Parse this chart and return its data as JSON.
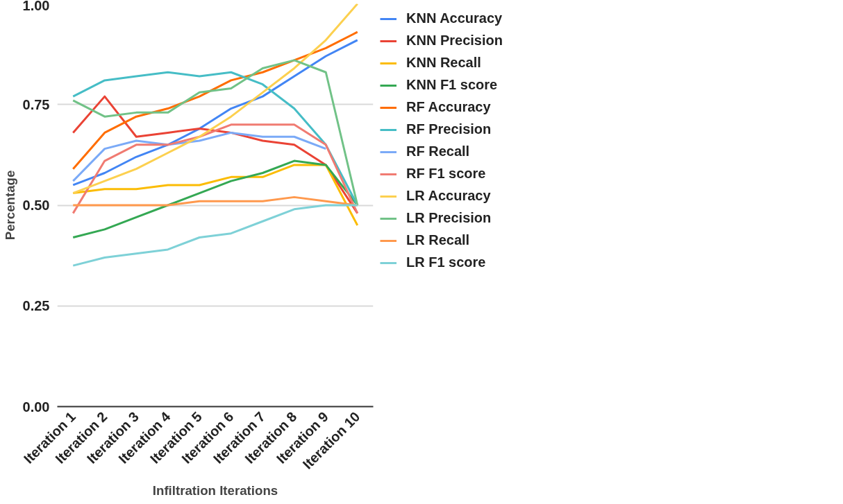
{
  "chart_data": {
    "type": "line",
    "xlabel": "Infiltration Iterations",
    "ylabel": "Percentage",
    "categories": [
      "Iteration 1",
      "Iteration 2",
      "Iteration 3",
      "Iteration 4",
      "Iteration 5",
      "Iteration 6",
      "Iteration 7",
      "Iteration 8",
      "Iteration 9",
      "Iteration 10"
    ],
    "ylim": [
      0,
      1
    ],
    "yticks": [
      {
        "value": 0,
        "label": "0.00"
      },
      {
        "value": 0.25,
        "label": "0.25"
      },
      {
        "value": 0.5,
        "label": "0.50"
      },
      {
        "value": 0.75,
        "label": "0.75"
      },
      {
        "value": 1,
        "label": "1.00"
      }
    ],
    "grid": "y",
    "legend": "right",
    "marker": "none",
    "line_style": "solid",
    "series": [
      {
        "name": "KNN Accuracy",
        "color": "#4285f4",
        "values": [
          0.55,
          0.58,
          0.62,
          0.65,
          0.69,
          0.74,
          0.77,
          0.82,
          0.87,
          0.91
        ]
      },
      {
        "name": "KNN Precision",
        "color": "#ea4335",
        "values": [
          0.68,
          0.77,
          0.67,
          0.68,
          0.69,
          0.68,
          0.66,
          0.65,
          0.6,
          0.48
        ]
      },
      {
        "name": "KNN Recall",
        "color": "#fbbc04",
        "values": [
          0.53,
          0.54,
          0.54,
          0.55,
          0.55,
          0.57,
          0.57,
          0.6,
          0.6,
          0.45
        ]
      },
      {
        "name": "KNN F1 score",
        "color": "#34a853",
        "values": [
          0.42,
          0.44,
          0.47,
          0.5,
          0.53,
          0.56,
          0.58,
          0.61,
          0.6,
          0.5
        ]
      },
      {
        "name": "RF Accuracy",
        "color": "#ff6d01",
        "values": [
          0.59,
          0.68,
          0.72,
          0.74,
          0.77,
          0.81,
          0.83,
          0.86,
          0.89,
          0.93
        ]
      },
      {
        "name": "RF Precision",
        "color": "#46bdc6",
        "values": [
          0.77,
          0.81,
          0.82,
          0.83,
          0.82,
          0.83,
          0.8,
          0.74,
          0.65,
          0.5
        ]
      },
      {
        "name": "RF Recall",
        "color": "#7baaf7",
        "values": [
          0.56,
          0.64,
          0.66,
          0.65,
          0.66,
          0.68,
          0.67,
          0.67,
          0.64,
          null
        ]
      },
      {
        "name": "RF F1 score",
        "color": "#f07b72",
        "values": [
          0.48,
          0.61,
          0.65,
          0.65,
          0.67,
          0.7,
          0.7,
          0.7,
          0.65,
          0.48
        ]
      },
      {
        "name": "LR Accuracy",
        "color": "#fcd04f",
        "values": [
          0.53,
          0.56,
          0.59,
          0.63,
          0.67,
          0.72,
          0.78,
          0.84,
          0.91,
          1.0
        ]
      },
      {
        "name": "LR Precision",
        "color": "#71c287",
        "values": [
          0.76,
          0.72,
          0.73,
          0.73,
          0.78,
          0.79,
          0.84,
          0.86,
          0.83,
          0.5
        ]
      },
      {
        "name": "LR Recall",
        "color": "#ff994d",
        "values": [
          0.5,
          0.5,
          0.5,
          0.5,
          0.51,
          0.51,
          0.51,
          0.52,
          0.51,
          0.5
        ]
      },
      {
        "name": "LR F1 score",
        "color": "#7ed1d7",
        "values": [
          0.35,
          0.37,
          0.38,
          0.39,
          0.42,
          0.43,
          0.46,
          0.49,
          0.5,
          0.5
        ]
      }
    ]
  }
}
